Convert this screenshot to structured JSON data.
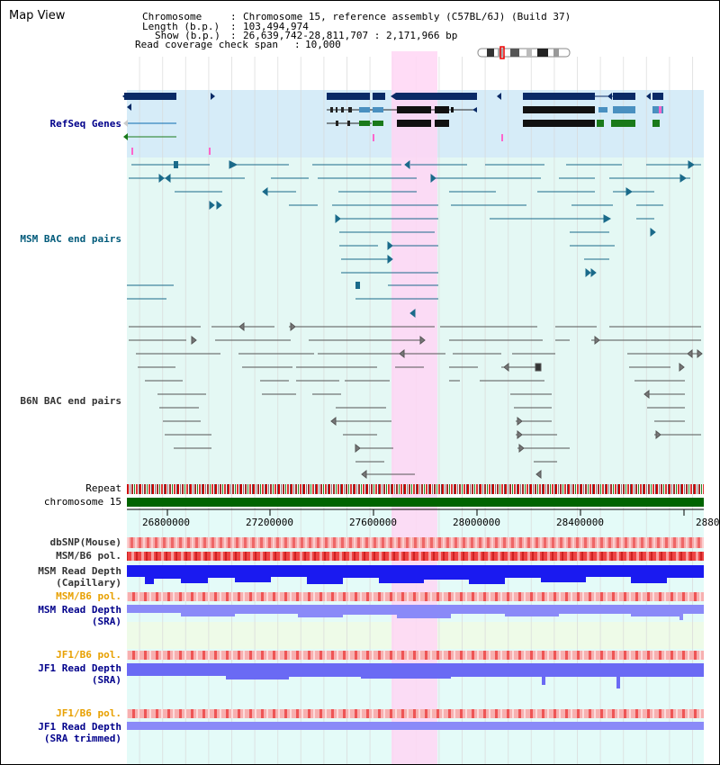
{
  "app": {
    "title": "Map View"
  },
  "header": {
    "chromosome_label": "Chromosome",
    "chromosome_value": "Chromosome 15, reference assembly (C57BL/6J) (Build 37)",
    "length_label": "Length (b.p.)",
    "length_value": "103,494,974",
    "show_label": "Show (b.p.)",
    "show_value": "26,639,742-28,811,707 : 2,171,966 bp",
    "coverage_label": "Read coverage check span",
    "coverage_value": "10,000"
  },
  "tracks": {
    "refseq": "RefSeq Genes",
    "msm_bac": "MSM BAC end pairs",
    "b6n_bac": "B6N BAC end pairs",
    "repeat": "Repeat",
    "chrom": "chromosome 15",
    "dbsnp": "dbSNP(Mouse)",
    "msm_b6_pol_1": "MSM/B6 pol.",
    "msm_depth_cap_1": "MSM Read Depth",
    "msm_depth_cap_2": "(Capillary)",
    "msm_b6_pol_2": "MSM/B6 pol.",
    "msm_depth_sra_1": "MSM Read Depth",
    "msm_depth_sra_2": "(SRA)",
    "jf1_pol_1": "JF1/B6 pol.",
    "jf1_depth_1": "JF1 Read Depth",
    "jf1_depth_2": "(SRA)",
    "jf1_pol_2": "JF1/B6 pol.",
    "jf1_trim_1": "JF1 Read Depth",
    "jf1_trim_2": "(SRA trimmed)"
  },
  "axis": {
    "ticks": [
      "26800000",
      "27200000",
      "27600000",
      "28000000",
      "28400000",
      "2880"
    ]
  },
  "colors": {
    "refseq_bg": "#d6ecf8",
    "bac_bg": "#e4f8f4",
    "highlight": "#ffd6f4",
    "chrom_green": "#006400",
    "depth_blue": "#1a1af0",
    "depth_light": "#8a8af8",
    "pol_red": "#f03c3c"
  }
}
